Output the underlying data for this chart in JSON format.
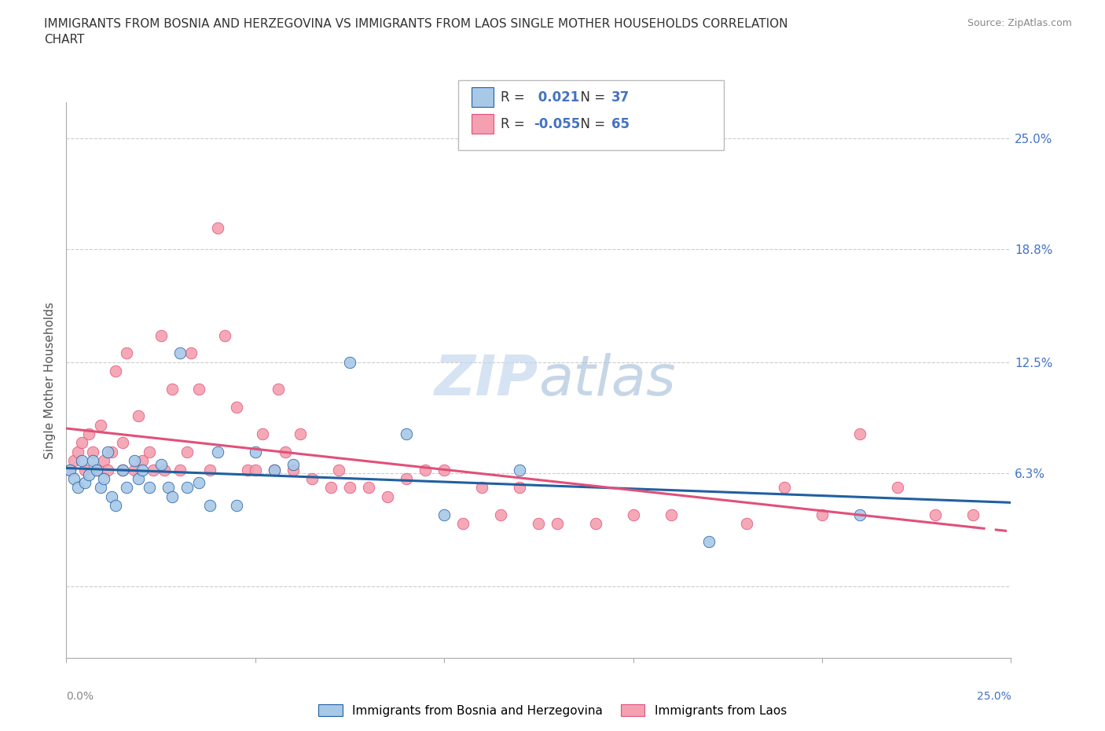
{
  "title": "IMMIGRANTS FROM BOSNIA AND HERZEGOVINA VS IMMIGRANTS FROM LAOS SINGLE MOTHER HOUSEHOLDS CORRELATION\nCHART",
  "source": "Source: ZipAtlas.com",
  "ylabel": "Single Mother Households",
  "xlim": [
    0.0,
    0.25
  ],
  "ylim": [
    -0.04,
    0.27
  ],
  "bosnia_R": 0.021,
  "bosnia_N": 37,
  "laos_R": -0.055,
  "laos_N": 65,
  "bosnia_color": "#a8c8e8",
  "laos_color": "#f4a0b0",
  "bosnia_line_color": "#2060a0",
  "laos_line_color": "#e0507a",
  "watermark_color": "#dce8f5",
  "legend_bosnia": "Immigrants from Bosnia and Herzegovina",
  "legend_laos": "Immigrants from Laos",
  "bosnia_x": [
    0.001,
    0.002,
    0.003,
    0.004,
    0.005,
    0.006,
    0.007,
    0.008,
    0.009,
    0.01,
    0.011,
    0.012,
    0.013,
    0.015,
    0.016,
    0.018,
    0.019,
    0.02,
    0.022,
    0.025,
    0.027,
    0.028,
    0.03,
    0.032,
    0.035,
    0.038,
    0.04,
    0.045,
    0.05,
    0.055,
    0.06,
    0.075,
    0.09,
    0.1,
    0.12,
    0.17,
    0.21
  ],
  "bosnia_y": [
    0.065,
    0.06,
    0.055,
    0.07,
    0.058,
    0.062,
    0.07,
    0.065,
    0.055,
    0.06,
    0.075,
    0.05,
    0.045,
    0.065,
    0.055,
    0.07,
    0.06,
    0.065,
    0.055,
    0.068,
    0.055,
    0.05,
    0.13,
    0.055,
    0.058,
    0.045,
    0.075,
    0.045,
    0.075,
    0.065,
    0.068,
    0.125,
    0.085,
    0.04,
    0.065,
    0.025,
    0.04
  ],
  "laos_x": [
    0.001,
    0.002,
    0.003,
    0.004,
    0.005,
    0.006,
    0.007,
    0.008,
    0.009,
    0.01,
    0.011,
    0.012,
    0.013,
    0.015,
    0.015,
    0.016,
    0.018,
    0.019,
    0.02,
    0.022,
    0.023,
    0.025,
    0.026,
    0.028,
    0.03,
    0.032,
    0.033,
    0.035,
    0.038,
    0.04,
    0.042,
    0.045,
    0.048,
    0.05,
    0.052,
    0.055,
    0.056,
    0.058,
    0.06,
    0.062,
    0.065,
    0.07,
    0.072,
    0.075,
    0.08,
    0.085,
    0.09,
    0.095,
    0.1,
    0.105,
    0.11,
    0.115,
    0.12,
    0.125,
    0.13,
    0.14,
    0.15,
    0.16,
    0.18,
    0.19,
    0.2,
    0.21,
    0.22,
    0.23,
    0.24
  ],
  "laos_y": [
    0.065,
    0.07,
    0.075,
    0.08,
    0.065,
    0.085,
    0.075,
    0.065,
    0.09,
    0.07,
    0.065,
    0.075,
    0.12,
    0.065,
    0.08,
    0.13,
    0.065,
    0.095,
    0.07,
    0.075,
    0.065,
    0.14,
    0.065,
    0.11,
    0.065,
    0.075,
    0.13,
    0.11,
    0.065,
    0.2,
    0.14,
    0.1,
    0.065,
    0.065,
    0.085,
    0.065,
    0.11,
    0.075,
    0.065,
    0.085,
    0.06,
    0.055,
    0.065,
    0.055,
    0.055,
    0.05,
    0.06,
    0.065,
    0.065,
    0.035,
    0.055,
    0.04,
    0.055,
    0.035,
    0.035,
    0.035,
    0.04,
    0.04,
    0.035,
    0.055,
    0.04,
    0.085,
    0.055,
    0.04,
    0.04
  ]
}
